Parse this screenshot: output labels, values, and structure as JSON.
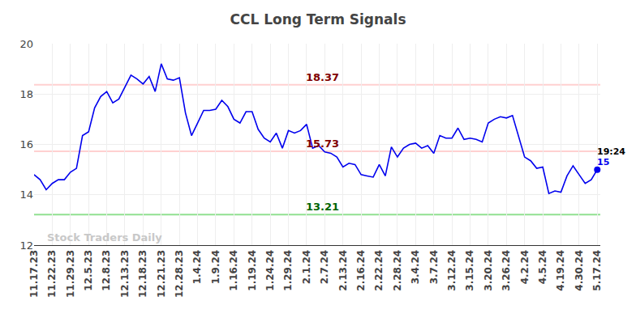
{
  "chart_data": {
    "type": "line",
    "title": "CCL Long Term Signals",
    "categories": [
      "11.17.23",
      null,
      null,
      "11.22.23",
      null,
      null,
      "11.29.23",
      null,
      null,
      "12.5.23",
      null,
      null,
      "12.8.23",
      null,
      null,
      "12.13.23",
      null,
      null,
      "12.18.23",
      null,
      null,
      "12.21.23",
      null,
      null,
      "12.28.23",
      null,
      null,
      "1.4.24",
      null,
      null,
      "1.9.24",
      null,
      null,
      "1.16.24",
      null,
      null,
      "1.19.24",
      null,
      null,
      "1.24.24",
      null,
      null,
      "1.29.24",
      null,
      null,
      "2.1.24",
      null,
      null,
      "2.7.24",
      null,
      null,
      "2.13.24",
      null,
      null,
      "2.16.24",
      null,
      null,
      "2.22.24",
      null,
      null,
      "2.28.24",
      null,
      null,
      "3.4.24",
      null,
      null,
      "3.7.24",
      null,
      null,
      "3.12.24",
      null,
      null,
      "3.15.24",
      null,
      null,
      "3.20.24",
      null,
      null,
      "3.26.24",
      null,
      null,
      "4.2.24",
      null,
      null,
      "4.5.24",
      null,
      null,
      "4.19.24",
      null,
      null,
      "4.30.24",
      null,
      null,
      "5.17.24"
    ],
    "values": [
      14.8,
      14.6,
      14.2,
      14.45,
      14.6,
      14.6,
      14.9,
      15.05,
      16.35,
      16.5,
      17.45,
      17.9,
      18.1,
      17.65,
      17.8,
      18.25,
      18.75,
      18.6,
      18.4,
      18.7,
      18.1,
      19.2,
      18.6,
      18.55,
      18.65,
      17.25,
      16.35,
      16.85,
      17.35,
      17.35,
      17.4,
      17.75,
      17.5,
      17.0,
      16.85,
      17.3,
      17.3,
      16.6,
      16.25,
      16.1,
      16.45,
      15.85,
      16.55,
      16.45,
      16.55,
      16.8,
      15.85,
      15.95,
      15.7,
      15.65,
      15.5,
      15.1,
      15.25,
      15.2,
      14.8,
      14.75,
      14.7,
      15.2,
      14.75,
      15.9,
      15.5,
      15.85,
      16.0,
      16.05,
      15.85,
      15.95,
      15.65,
      16.35,
      16.25,
      16.25,
      16.65,
      16.2,
      16.25,
      16.2,
      16.1,
      16.85,
      17.0,
      17.1,
      17.05,
      17.15,
      16.3,
      15.5,
      15.35,
      15.05,
      15.1,
      14.05,
      14.15,
      14.1,
      14.75,
      15.15,
      14.8,
      14.45,
      14.6,
      15.0
    ],
    "color": "#0000ee",
    "ylim": [
      12,
      20
    ],
    "yticks": [
      12,
      14,
      16,
      18,
      20
    ],
    "grid": true,
    "levels": [
      {
        "value": 18.37,
        "color": "#800000",
        "line_color": "#ffd0d0"
      },
      {
        "value": 15.73,
        "color": "#800000",
        "line_color": "#ffd0d0"
      },
      {
        "value": 13.21,
        "color": "#006400",
        "line_color": "#90e090"
      }
    ],
    "last_point": {
      "time": "19:24",
      "value": 15
    },
    "watermark": "Stock Traders Daily"
  }
}
